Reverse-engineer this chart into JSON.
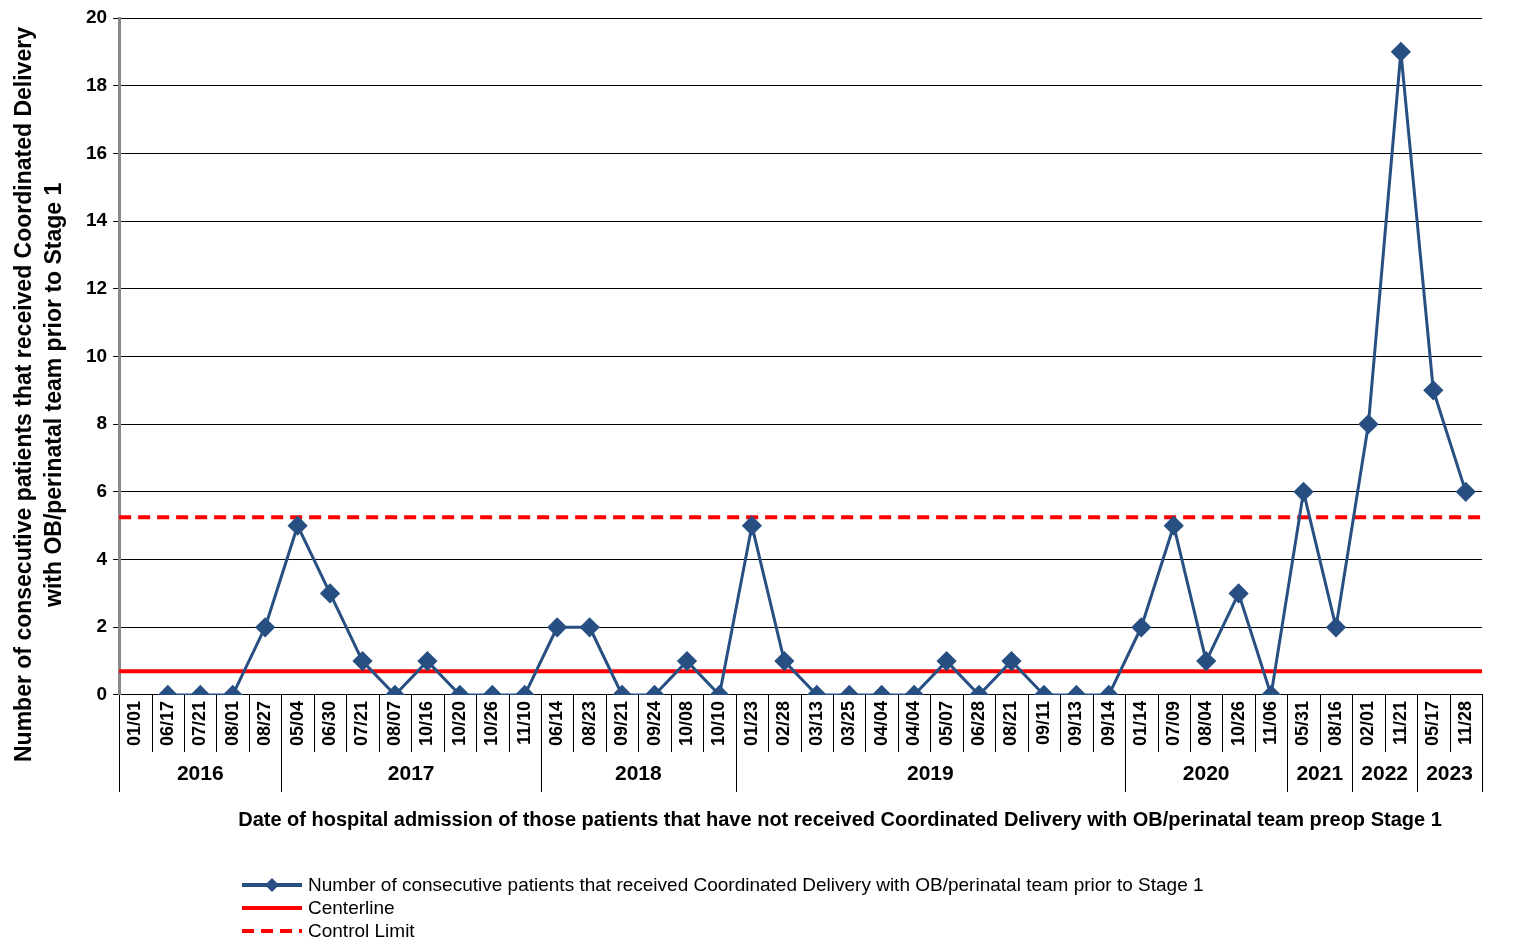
{
  "chart_data": {
    "type": "line",
    "categories": [
      "01/01",
      "06/17",
      "07/21",
      "08/01",
      "08/27",
      "05/04",
      "06/30",
      "07/21",
      "08/07",
      "10/16",
      "10/20",
      "10/26",
      "11/10",
      "06/14",
      "08/23",
      "09/21",
      "09/24",
      "10/08",
      "10/10",
      "01/23",
      "02/28",
      "03/13",
      "03/25",
      "04/04",
      "04/04",
      "05/07",
      "06/28",
      "08/21",
      "09/11",
      "09/13",
      "09/14",
      "01/14",
      "07/09",
      "08/04",
      "10/26",
      "11/06",
      "05/31",
      "08/16",
      "02/01",
      "11/21",
      "05/17",
      "11/28"
    ],
    "series": [
      {
        "name": "Number of consecutive patients that received Coordinated Delivery with OB/perinatal team prior to Stage 1",
        "color": "#284f82",
        "values": [
          null,
          0,
          0,
          0,
          2,
          5,
          3,
          1,
          0,
          1,
          0,
          0,
          0,
          2,
          2,
          0,
          0,
          1,
          0,
          5,
          1,
          0,
          0,
          0,
          0,
          1,
          0,
          1,
          0,
          0,
          0,
          2,
          5,
          1,
          3,
          0,
          6,
          2,
          8,
          19,
          9,
          6
        ]
      }
    ],
    "marker": "diamond",
    "line_style": "solid",
    "ylim": [
      0,
      20
    ],
    "yticks": [
      0,
      2,
      4,
      6,
      8,
      10,
      12,
      14,
      16,
      18,
      20
    ],
    "grid": "y",
    "ylabel": "Number of consecutive patients that received Coordinated Delivery with OB/perinatal team prior to Stage 1",
    "xlabel": "Date of hospital admission of those patients that have not received Coordinated Delivery with  OB/perinatal team preop Stage 1",
    "ref_lines": [
      {
        "axis": "y",
        "value": 0.7,
        "label": "Centerline",
        "color": "#ff0000",
        "line_style": "solid"
      },
      {
        "axis": "y",
        "value": 5.25,
        "label": "Control Limit",
        "color": "#ff0000",
        "line_style": "dashed"
      }
    ],
    "annotations": [
      "2016",
      "2017",
      "2018",
      "2019",
      "2020",
      "2021",
      "2022",
      "2023"
    ],
    "legend": "bottom left"
  }
}
